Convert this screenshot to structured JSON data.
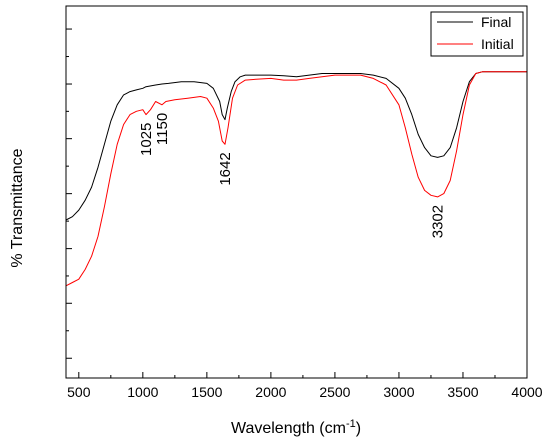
{
  "chart_data": {
    "type": "line",
    "title": "",
    "xlabel": "Wavelength",
    "xlabel_unit": "(cm",
    "xlabel_unit_sup": "-1",
    "xlabel_unit_close": ")",
    "ylabel": "% Transmittance",
    "xlim": [
      400,
      4000
    ],
    "ylim": [
      -0.06,
      1.07
    ],
    "x_ticks": [
      500,
      1000,
      1500,
      2000,
      2500,
      3000,
      3500,
      4000
    ],
    "y_ticks_labeled": false,
    "y_ticks": [
      0.0,
      0.167,
      0.333,
      0.5,
      0.667,
      0.833,
      1.0
    ],
    "grid": false,
    "legend_position": "top-right",
    "series": [
      {
        "name": "Final",
        "color": "#000000",
        "points": [
          [
            400,
            0.42
          ],
          [
            450,
            0.43
          ],
          [
            500,
            0.45
          ],
          [
            550,
            0.48
          ],
          [
            600,
            0.52
          ],
          [
            650,
            0.58
          ],
          [
            700,
            0.65
          ],
          [
            750,
            0.72
          ],
          [
            800,
            0.77
          ],
          [
            850,
            0.8
          ],
          [
            900,
            0.81
          ],
          [
            950,
            0.815
          ],
          [
            1000,
            0.82
          ],
          [
            1025,
            0.825
          ],
          [
            1100,
            0.83
          ],
          [
            1150,
            0.833
          ],
          [
            1200,
            0.835
          ],
          [
            1300,
            0.84
          ],
          [
            1400,
            0.84
          ],
          [
            1500,
            0.835
          ],
          [
            1550,
            0.82
          ],
          [
            1600,
            0.78
          ],
          [
            1620,
            0.74
          ],
          [
            1642,
            0.725
          ],
          [
            1660,
            0.76
          ],
          [
            1690,
            0.81
          ],
          [
            1720,
            0.84
          ],
          [
            1760,
            0.855
          ],
          [
            1800,
            0.86
          ],
          [
            1900,
            0.86
          ],
          [
            2000,
            0.86
          ],
          [
            2100,
            0.858
          ],
          [
            2200,
            0.855
          ],
          [
            2300,
            0.86
          ],
          [
            2400,
            0.865
          ],
          [
            2500,
            0.865
          ],
          [
            2600,
            0.865
          ],
          [
            2700,
            0.865
          ],
          [
            2800,
            0.86
          ],
          [
            2900,
            0.85
          ],
          [
            3000,
            0.82
          ],
          [
            3050,
            0.79
          ],
          [
            3100,
            0.74
          ],
          [
            3150,
            0.68
          ],
          [
            3200,
            0.64
          ],
          [
            3250,
            0.615
          ],
          [
            3302,
            0.61
          ],
          [
            3350,
            0.615
          ],
          [
            3400,
            0.64
          ],
          [
            3450,
            0.7
          ],
          [
            3500,
            0.78
          ],
          [
            3550,
            0.84
          ],
          [
            3600,
            0.865
          ],
          [
            3650,
            0.87
          ],
          [
            3700,
            0.87
          ],
          [
            3800,
            0.87
          ],
          [
            4000,
            0.87
          ]
        ]
      },
      {
        "name": "Initial",
        "color": "#ff0000",
        "points": [
          [
            400,
            0.22
          ],
          [
            450,
            0.23
          ],
          [
            500,
            0.24
          ],
          [
            550,
            0.27
          ],
          [
            600,
            0.31
          ],
          [
            650,
            0.37
          ],
          [
            700,
            0.46
          ],
          [
            750,
            0.56
          ],
          [
            800,
            0.65
          ],
          [
            850,
            0.71
          ],
          [
            900,
            0.74
          ],
          [
            950,
            0.75
          ],
          [
            1000,
            0.755
          ],
          [
            1025,
            0.74
          ],
          [
            1060,
            0.755
          ],
          [
            1100,
            0.78
          ],
          [
            1150,
            0.77
          ],
          [
            1180,
            0.78
          ],
          [
            1250,
            0.785
          ],
          [
            1350,
            0.79
          ],
          [
            1450,
            0.795
          ],
          [
            1500,
            0.79
          ],
          [
            1550,
            0.76
          ],
          [
            1590,
            0.72
          ],
          [
            1620,
            0.66
          ],
          [
            1642,
            0.65
          ],
          [
            1665,
            0.7
          ],
          [
            1700,
            0.79
          ],
          [
            1740,
            0.83
          ],
          [
            1800,
            0.845
          ],
          [
            1900,
            0.848
          ],
          [
            2000,
            0.85
          ],
          [
            2100,
            0.845
          ],
          [
            2200,
            0.845
          ],
          [
            2300,
            0.85
          ],
          [
            2400,
            0.855
          ],
          [
            2500,
            0.86
          ],
          [
            2600,
            0.86
          ],
          [
            2700,
            0.86
          ],
          [
            2800,
            0.85
          ],
          [
            2900,
            0.83
          ],
          [
            3000,
            0.77
          ],
          [
            3050,
            0.7
          ],
          [
            3100,
            0.62
          ],
          [
            3150,
            0.55
          ],
          [
            3200,
            0.51
          ],
          [
            3250,
            0.495
          ],
          [
            3302,
            0.49
          ],
          [
            3350,
            0.5
          ],
          [
            3400,
            0.54
          ],
          [
            3450,
            0.63
          ],
          [
            3500,
            0.74
          ],
          [
            3550,
            0.83
          ],
          [
            3600,
            0.865
          ],
          [
            3650,
            0.87
          ],
          [
            3700,
            0.87
          ],
          [
            3800,
            0.87
          ],
          [
            4000,
            0.87
          ]
        ]
      }
    ],
    "annotations": [
      {
        "text": "1025",
        "x": 1025,
        "y": 0.74
      },
      {
        "text": "1150",
        "x": 1150,
        "y": 0.77
      },
      {
        "text": "1642",
        "x": 1642,
        "y": 0.65
      },
      {
        "text": "3302",
        "x": 3302,
        "y": 0.49
      }
    ]
  }
}
